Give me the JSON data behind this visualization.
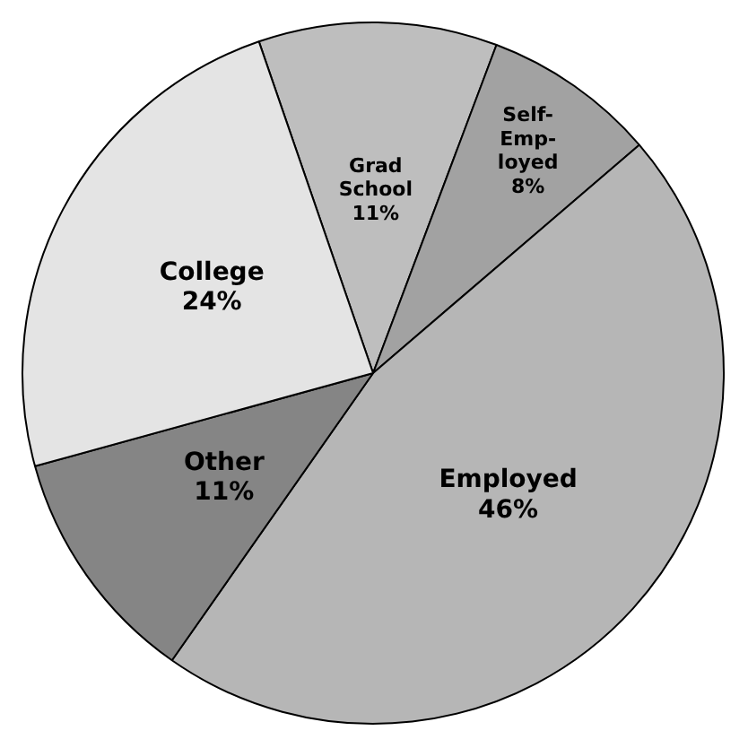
{
  "chart_data": {
    "type": "pie",
    "categories": [
      "Grad\nSchool",
      "Self-\nEmp-\nloyed",
      "Employed",
      "Other",
      "College"
    ],
    "values": [
      11,
      8,
      46,
      11,
      24
    ],
    "value_labels": [
      "11%",
      "8%",
      "46%",
      "11%",
      "24%"
    ],
    "colors": [
      "#bebebe",
      "#a2a2a2",
      "#b6b6b6",
      "#858585",
      "#e4e4e4"
    ],
    "legend": false
  }
}
